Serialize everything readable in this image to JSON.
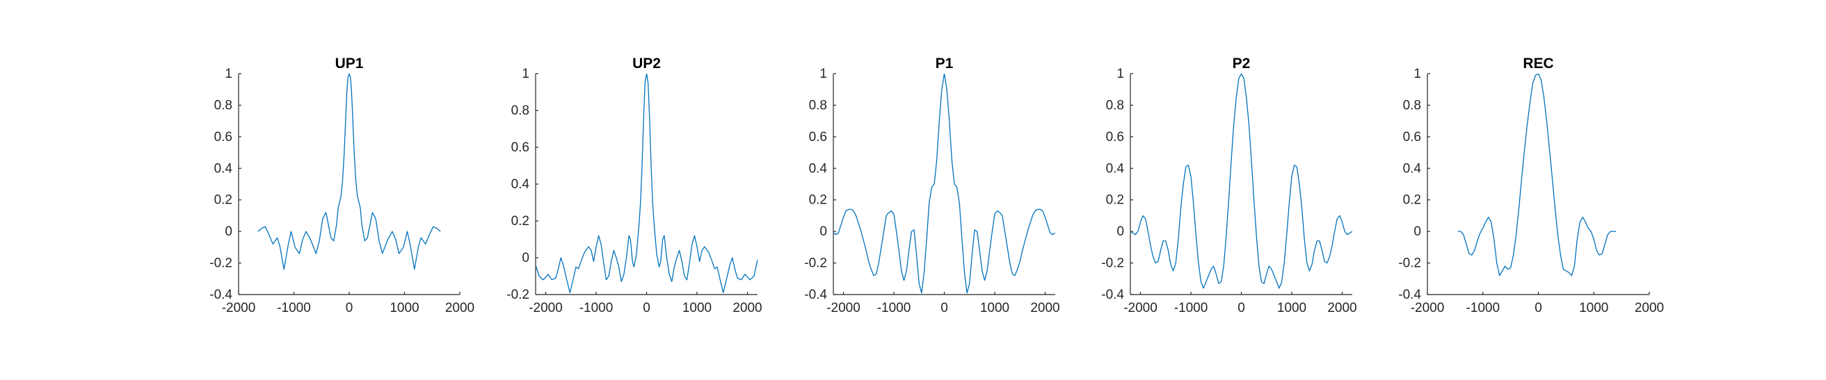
{
  "colors": {
    "line": "#0072BD",
    "axis": "#262626",
    "background": "#ffffff"
  },
  "chart_data": [
    {
      "type": "line",
      "title": "UP1",
      "xlim": [
        -2000,
        2000
      ],
      "ylim": [
        -0.4,
        1
      ],
      "xticks": [
        "-2000",
        "-1000",
        "0",
        "1000",
        "2000"
      ],
      "yticks": [
        "-0.4",
        "-0.2",
        "0",
        "0.2",
        "0.4",
        "0.6",
        "0.8",
        "1"
      ],
      "grid": false,
      "x": [
        -1650,
        -1580,
        -1520,
        -1450,
        -1380,
        -1300,
        -1250,
        -1180,
        -1100,
        -1050,
        -980,
        -900,
        -840,
        -780,
        -700,
        -600,
        -540,
        -480,
        -420,
        -380,
        -330,
        -280,
        -230,
        -200,
        -150,
        -120,
        -90,
        -60,
        -40,
        -20,
        0,
        20,
        40,
        60,
        90,
        120,
        150,
        200,
        230,
        280,
        330,
        380,
        420,
        480,
        540,
        600,
        700,
        780,
        840,
        900,
        980,
        1050,
        1100,
        1180,
        1250,
        1300,
        1380,
        1450,
        1520,
        1580,
        1650
      ],
      "y": [
        0.0,
        0.02,
        0.03,
        -0.02,
        -0.08,
        -0.04,
        -0.1,
        -0.24,
        -0.08,
        0.0,
        -0.1,
        -0.14,
        -0.05,
        -0.0,
        -0.05,
        -0.14,
        -0.06,
        0.08,
        0.12,
        0.05,
        -0.04,
        -0.06,
        0.04,
        0.15,
        0.22,
        0.32,
        0.5,
        0.75,
        0.9,
        0.98,
        1.0,
        0.98,
        0.9,
        0.75,
        0.5,
        0.32,
        0.22,
        0.15,
        0.04,
        -0.06,
        -0.04,
        0.05,
        0.12,
        0.08,
        -0.06,
        -0.14,
        -0.05,
        -0.0,
        -0.05,
        -0.14,
        -0.1,
        0.0,
        -0.08,
        -0.24,
        -0.1,
        -0.04,
        -0.08,
        -0.02,
        0.03,
        0.02,
        0.0
      ]
    },
    {
      "type": "line",
      "title": "UP2",
      "xlim": [
        -2200,
        2200
      ],
      "ylim": [
        -0.2,
        1
      ],
      "xticks": [
        "-2000",
        "-1000",
        "0",
        "1000",
        "2000"
      ],
      "yticks": [
        "-0.2",
        "0",
        "0.2",
        "0.4",
        "0.6",
        "0.8",
        "1"
      ],
      "grid": false,
      "x": [
        -2200,
        -2130,
        -2050,
        -1950,
        -1880,
        -1800,
        -1750,
        -1700,
        -1650,
        -1600,
        -1520,
        -1450,
        -1400,
        -1350,
        -1300,
        -1230,
        -1150,
        -1100,
        -1050,
        -1000,
        -950,
        -900,
        -850,
        -800,
        -750,
        -700,
        -650,
        -600,
        -550,
        -500,
        -450,
        -400,
        -350,
        -320,
        -280,
        -250,
        -200,
        -150,
        -120,
        -90,
        -60,
        -30,
        0,
        30,
        60,
        90,
        120,
        150,
        200,
        250,
        280,
        320,
        350,
        400,
        450,
        500,
        550,
        600,
        650,
        700,
        750,
        800,
        850,
        900,
        950,
        1000,
        1050,
        1100,
        1150,
        1230,
        1300,
        1350,
        1400,
        1450,
        1520,
        1600,
        1650,
        1700,
        1750,
        1800,
        1880,
        1950,
        2050,
        2130,
        2200
      ],
      "y": [
        -0.04,
        -0.1,
        -0.12,
        -0.09,
        -0.12,
        -0.11,
        -0.06,
        0.0,
        -0.04,
        -0.1,
        -0.19,
        -0.11,
        -0.05,
        -0.06,
        -0.02,
        0.03,
        0.06,
        0.04,
        -0.02,
        0.06,
        0.12,
        0.07,
        -0.03,
        -0.12,
        -0.1,
        -0.02,
        0.04,
        0.0,
        -0.05,
        -0.13,
        -0.09,
        0.0,
        0.12,
        0.1,
        -0.02,
        -0.05,
        0.02,
        0.18,
        0.3,
        0.5,
        0.75,
        0.95,
        1.0,
        0.95,
        0.75,
        0.5,
        0.3,
        0.18,
        0.02,
        -0.05,
        -0.02,
        0.1,
        0.12,
        0.0,
        -0.09,
        -0.13,
        -0.05,
        0.0,
        0.04,
        -0.02,
        -0.1,
        -0.12,
        -0.03,
        0.07,
        0.12,
        0.06,
        -0.02,
        0.04,
        0.06,
        0.03,
        -0.02,
        -0.06,
        -0.05,
        -0.11,
        -0.19,
        -0.1,
        -0.04,
        0.0,
        -0.06,
        -0.11,
        -0.12,
        -0.09,
        -0.12,
        -0.1,
        -0.01
      ]
    },
    {
      "type": "line",
      "title": "P1",
      "xlim": [
        -2200,
        2200
      ],
      "ylim": [
        -0.4,
        1
      ],
      "xticks": [
        "-2000",
        "-1000",
        "0",
        "1000",
        "2000"
      ],
      "yticks": [
        "-0.4",
        "-0.2",
        "0",
        "0.2",
        "0.4",
        "0.6",
        "0.8",
        "1"
      ],
      "grid": false,
      "x": [
        -2200,
        -2150,
        -2100,
        -2050,
        -2000,
        -1950,
        -1900,
        -1850,
        -1800,
        -1750,
        -1700,
        -1650,
        -1600,
        -1550,
        -1500,
        -1450,
        -1400,
        -1350,
        -1300,
        -1250,
        -1200,
        -1150,
        -1100,
        -1050,
        -1000,
        -950,
        -900,
        -850,
        -800,
        -750,
        -700,
        -650,
        -600,
        -550,
        -500,
        -450,
        -400,
        -350,
        -300,
        -250,
        -200,
        -150,
        -100,
        -50,
        0,
        50,
        100,
        150,
        200,
        250,
        300,
        350,
        400,
        450,
        500,
        550,
        600,
        650,
        700,
        750,
        800,
        850,
        900,
        950,
        1000,
        1050,
        1100,
        1150,
        1200,
        1250,
        1300,
        1350,
        1400,
        1450,
        1500,
        1550,
        1600,
        1650,
        1700,
        1750,
        1800,
        1850,
        1900,
        1950,
        2000,
        2050,
        2100,
        2150,
        2200
      ],
      "y": [
        -0.01,
        -0.02,
        -0.01,
        0.04,
        0.09,
        0.13,
        0.14,
        0.14,
        0.13,
        0.1,
        0.05,
        0.0,
        -0.06,
        -0.12,
        -0.19,
        -0.24,
        -0.28,
        -0.27,
        -0.2,
        -0.1,
        0.0,
        0.1,
        0.12,
        0.13,
        0.11,
        0.0,
        -0.12,
        -0.25,
        -0.31,
        -0.25,
        -0.12,
        0.0,
        0.01,
        -0.15,
        -0.33,
        -0.39,
        -0.26,
        -0.05,
        0.18,
        0.28,
        0.3,
        0.45,
        0.7,
        0.9,
        1.0,
        0.9,
        0.7,
        0.45,
        0.3,
        0.28,
        0.18,
        -0.05,
        -0.26,
        -0.39,
        -0.33,
        -0.15,
        0.01,
        0.0,
        -0.12,
        -0.25,
        -0.31,
        -0.25,
        -0.12,
        0.0,
        0.11,
        0.13,
        0.12,
        0.1,
        0.0,
        -0.1,
        -0.2,
        -0.27,
        -0.28,
        -0.24,
        -0.19,
        -0.12,
        -0.06,
        0.0,
        0.05,
        0.1,
        0.13,
        0.14,
        0.14,
        0.13,
        0.09,
        0.04,
        -0.01,
        -0.02,
        -0.01
      ]
    },
    {
      "type": "line",
      "title": "P2",
      "xlim": [
        -2200,
        2200
      ],
      "ylim": [
        -0.4,
        1
      ],
      "xticks": [
        "-2000",
        "-1000",
        "0",
        "1000",
        "2000"
      ],
      "yticks": [
        "-0.4",
        "-0.2",
        "0",
        "0.2",
        "0.4",
        "0.6",
        "0.8",
        "1"
      ],
      "grid": false,
      "x": [
        -2200,
        -2150,
        -2100,
        -2050,
        -2000,
        -1950,
        -1900,
        -1850,
        -1800,
        -1750,
        -1700,
        -1650,
        -1600,
        -1550,
        -1500,
        -1450,
        -1400,
        -1350,
        -1300,
        -1250,
        -1200,
        -1150,
        -1100,
        -1050,
        -1000,
        -950,
        -900,
        -850,
        -800,
        -750,
        -700,
        -650,
        -600,
        -550,
        -500,
        -450,
        -400,
        -350,
        -300,
        -250,
        -200,
        -150,
        -100,
        -50,
        0,
        50,
        100,
        150,
        200,
        250,
        300,
        350,
        400,
        450,
        500,
        550,
        600,
        650,
        700,
        750,
        800,
        850,
        900,
        950,
        1000,
        1050,
        1100,
        1150,
        1200,
        1250,
        1300,
        1350,
        1400,
        1450,
        1500,
        1550,
        1600,
        1650,
        1700,
        1750,
        1800,
        1850,
        1900,
        1950,
        2000,
        2050,
        2100,
        2150,
        2200
      ],
      "y": [
        0.0,
        -0.01,
        -0.02,
        0.0,
        0.06,
        0.1,
        0.08,
        0.0,
        -0.09,
        -0.16,
        -0.2,
        -0.19,
        -0.12,
        -0.06,
        -0.06,
        -0.12,
        -0.21,
        -0.25,
        -0.2,
        -0.05,
        0.15,
        0.3,
        0.41,
        0.42,
        0.35,
        0.18,
        -0.02,
        -0.2,
        -0.32,
        -0.36,
        -0.32,
        -0.28,
        -0.24,
        -0.22,
        -0.27,
        -0.33,
        -0.32,
        -0.22,
        -0.03,
        0.2,
        0.45,
        0.68,
        0.85,
        0.97,
        1.0,
        0.97,
        0.85,
        0.68,
        0.45,
        0.2,
        -0.03,
        -0.22,
        -0.32,
        -0.33,
        -0.27,
        -0.22,
        -0.24,
        -0.28,
        -0.32,
        -0.36,
        -0.32,
        -0.2,
        -0.02,
        0.18,
        0.35,
        0.42,
        0.41,
        0.3,
        0.15,
        -0.05,
        -0.2,
        -0.25,
        -0.21,
        -0.12,
        -0.06,
        -0.06,
        -0.12,
        -0.19,
        -0.2,
        -0.16,
        -0.09,
        0.0,
        0.08,
        0.1,
        0.06,
        0.0,
        -0.02,
        -0.01,
        0.0
      ]
    },
    {
      "type": "line",
      "title": "REC",
      "xlim": [
        -2000,
        2000
      ],
      "ylim": [
        -0.4,
        1
      ],
      "xticks": [
        "-2000",
        "-1000",
        "0",
        "1000",
        "2000"
      ],
      "yticks": [
        "-0.4",
        "-0.2",
        "0",
        "0.2",
        "0.4",
        "0.6",
        "0.8",
        "1"
      ],
      "grid": false,
      "x": [
        -1450,
        -1400,
        -1350,
        -1300,
        -1250,
        -1200,
        -1150,
        -1100,
        -1050,
        -1000,
        -950,
        -900,
        -850,
        -800,
        -750,
        -700,
        -650,
        -600,
        -550,
        -500,
        -450,
        -400,
        -350,
        -300,
        -250,
        -200,
        -150,
        -100,
        -50,
        0,
        50,
        100,
        150,
        200,
        250,
        300,
        350,
        400,
        450,
        500,
        550,
        600,
        650,
        700,
        750,
        800,
        850,
        900,
        950,
        1000,
        1050,
        1100,
        1150,
        1200,
        1250,
        1300,
        1350,
        1400
      ],
      "y": [
        0.0,
        0.0,
        -0.02,
        -0.08,
        -0.14,
        -0.15,
        -0.12,
        -0.06,
        -0.01,
        0.02,
        0.06,
        0.09,
        0.06,
        -0.05,
        -0.2,
        -0.28,
        -0.25,
        -0.22,
        -0.24,
        -0.23,
        -0.15,
        -0.02,
        0.15,
        0.34,
        0.52,
        0.68,
        0.82,
        0.94,
        0.99,
        1.0,
        0.96,
        0.85,
        0.7,
        0.52,
        0.34,
        0.15,
        -0.02,
        -0.15,
        -0.24,
        -0.25,
        -0.26,
        -0.28,
        -0.22,
        -0.05,
        0.06,
        0.09,
        0.06,
        0.02,
        0.0,
        -0.05,
        -0.12,
        -0.15,
        -0.14,
        -0.08,
        -0.02,
        0.0,
        0.0,
        0.0
      ]
    }
  ]
}
